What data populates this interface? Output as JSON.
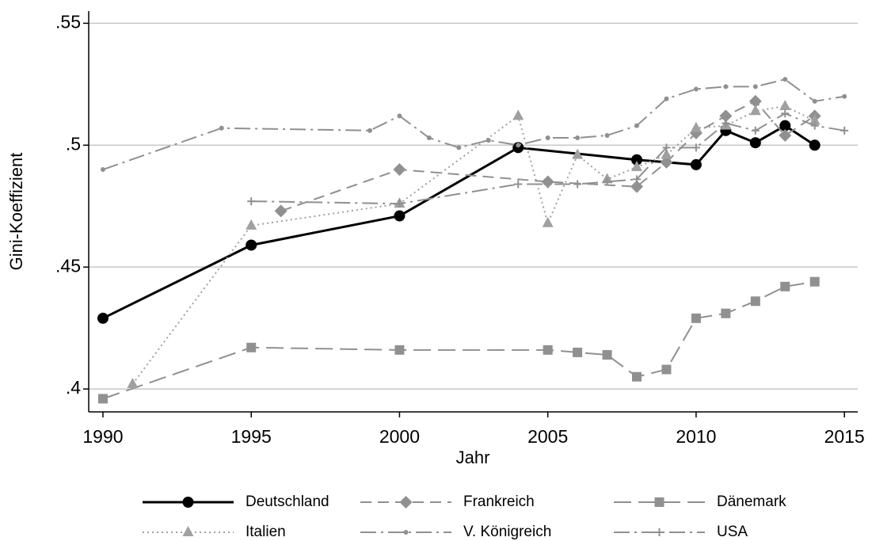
{
  "chart_data": {
    "type": "line",
    "x_label": "Jahr",
    "y_label": "Gini-Koeffizient",
    "xlim": [
      1989.52,
      2015.45
    ],
    "ylim": [
      0.3906,
      0.555
    ],
    "xticks": [
      1990,
      1995,
      2000,
      2005,
      2010,
      2015
    ],
    "yticks": [
      {
        "value": 0.4,
        "label": ".4"
      },
      {
        "value": 0.45,
        "label": ".45"
      },
      {
        "value": 0.5,
        "label": ".5"
      },
      {
        "value": 0.55,
        "label": ".55"
      }
    ],
    "grid": true,
    "legend": "bottom",
    "series": [
      {
        "name": "Deutschland",
        "color": "#000000",
        "dash": "solid",
        "marker": "circle",
        "x": [
          1990,
          1995,
          2000,
          2004,
          2008,
          2010,
          2011,
          2012,
          2013,
          2014
        ],
        "values": [
          0.429,
          0.459,
          0.471,
          0.499,
          0.494,
          0.492,
          0.506,
          0.501,
          0.508,
          0.5
        ]
      },
      {
        "name": "Frankreich",
        "color": "#909090",
        "dash": "dash",
        "marker": "diamond",
        "x": [
          1996,
          2000,
          2005,
          2008,
          2009,
          2010,
          2011,
          2012,
          2013,
          2014
        ],
        "values": [
          0.473,
          0.49,
          0.485,
          0.483,
          0.493,
          0.505,
          0.512,
          0.518,
          0.504,
          0.512
        ]
      },
      {
        "name": "Dänemark",
        "color": "#909090",
        "dash": "longdash",
        "marker": "square",
        "x": [
          1990,
          1995,
          2000,
          2005,
          2006,
          2007,
          2008,
          2009,
          2010,
          2011,
          2012,
          2013,
          2014
        ],
        "values": [
          0.396,
          0.417,
          0.416,
          0.416,
          0.415,
          0.414,
          0.405,
          0.408,
          0.429,
          0.431,
          0.436,
          0.442,
          0.444
        ]
      },
      {
        "name": "Italien",
        "color": "#a0a0a0",
        "dash": "dot",
        "marker": "triangle",
        "x": [
          1991,
          1995,
          2000,
          2004,
          2005,
          2006,
          2007,
          2008,
          2009,
          2010,
          2011,
          2012,
          2013,
          2014
        ],
        "values": [
          0.402,
          0.467,
          0.476,
          0.512,
          0.468,
          0.496,
          0.486,
          0.491,
          0.496,
          0.507,
          0.508,
          0.514,
          0.516,
          0.51
        ]
      },
      {
        "name": "V. Königreich",
        "color": "#909090",
        "dash": "dashdot",
        "marker": "smallcircle",
        "x": [
          1990,
          1994,
          1999,
          2000,
          2001,
          2002,
          2003,
          2004,
          2005,
          2006,
          2007,
          2008,
          2009,
          2010,
          2011,
          2012,
          2013,
          2014,
          2015
        ],
        "values": [
          0.49,
          0.507,
          0.506,
          0.512,
          0.503,
          0.499,
          0.502,
          0.5,
          0.503,
          0.503,
          0.504,
          0.508,
          0.519,
          0.523,
          0.524,
          0.524,
          0.527,
          0.518,
          0.52
        ]
      },
      {
        "name": "USA",
        "color": "#909090",
        "dash": "dashdot",
        "marker": "plus",
        "x": [
          1995,
          2000,
          2004,
          2005,
          2006,
          2007,
          2008,
          2009,
          2010,
          2011,
          2012,
          2013,
          2014,
          2015
        ],
        "values": [
          0.477,
          0.476,
          0.484,
          0.484,
          0.484,
          0.485,
          0.486,
          0.499,
          0.499,
          0.509,
          0.506,
          0.513,
          0.508,
          0.506
        ]
      }
    ]
  }
}
